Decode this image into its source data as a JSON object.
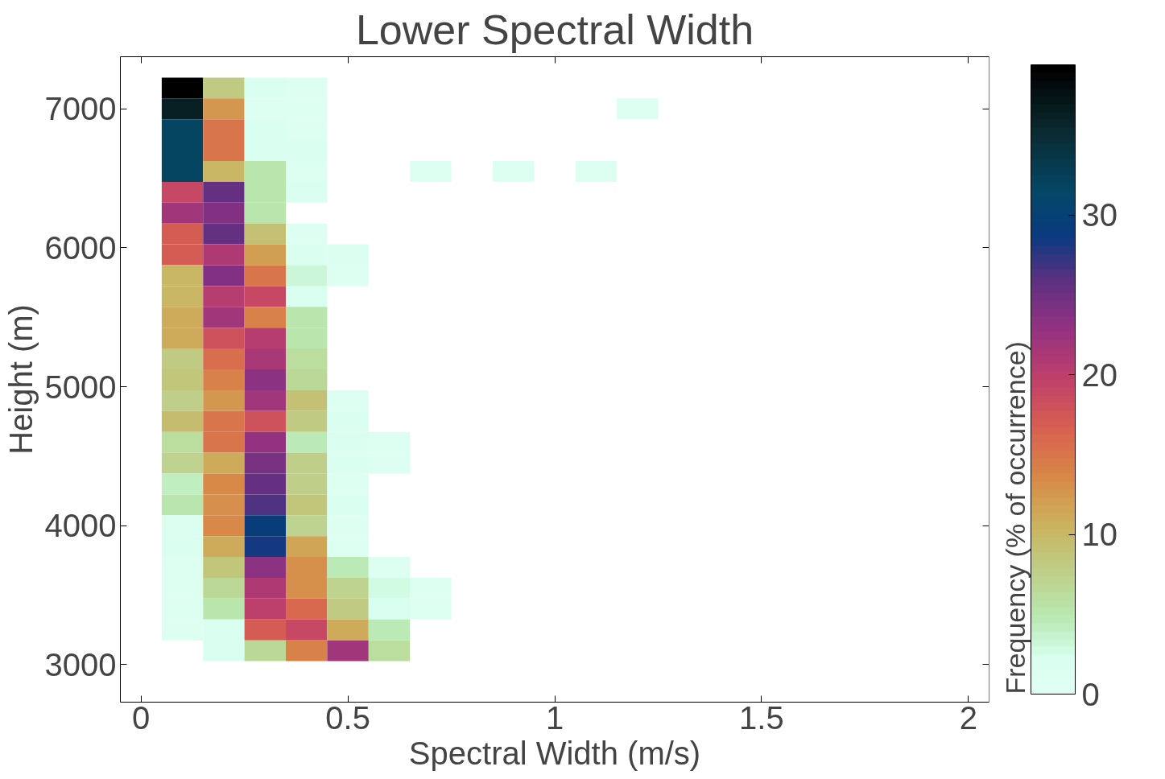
{
  "chart_data": {
    "type": "heatmap",
    "title": "Lower Spectral Width",
    "xlabel": "Spectral Width (m/s)",
    "ylabel": "Height (m)",
    "clabel": "Frequency (% of occurrence)",
    "x": [
      0.1,
      0.2,
      0.3,
      0.4,
      0.5,
      0.6,
      0.7,
      0.8,
      0.9,
      1.0,
      1.1,
      1.2
    ],
    "y": [
      7150,
      7000,
      6850,
      6700,
      6550,
      6400,
      6250,
      6100,
      5950,
      5800,
      5650,
      5500,
      5350,
      5200,
      5050,
      4900,
      4750,
      4600,
      4450,
      4300,
      4150,
      4000,
      3850,
      3700,
      3550,
      3400,
      3250,
      3100
    ],
    "cells": [
      [
        39,
        8,
        2,
        1,
        null,
        null,
        null,
        null,
        null,
        null,
        null,
        null
      ],
      [
        36,
        12.5,
        1,
        1,
        null,
        null,
        null,
        null,
        null,
        null,
        null,
        1
      ],
      [
        32,
        15,
        2,
        1,
        null,
        null,
        null,
        null,
        null,
        null,
        null,
        null
      ],
      [
        32,
        15,
        2,
        2,
        null,
        null,
        null,
        null,
        null,
        null,
        null,
        null
      ],
      [
        32,
        10,
        5,
        1,
        null,
        null,
        1,
        null,
        1,
        null,
        1,
        null
      ],
      [
        19,
        25.5,
        5,
        1.5,
        null,
        null,
        null,
        null,
        null,
        null,
        null,
        null
      ],
      [
        22,
        24,
        5,
        null,
        null,
        null,
        null,
        null,
        null,
        null,
        null,
        null
      ],
      [
        17,
        25.5,
        9,
        1,
        null,
        null,
        null,
        null,
        null,
        null,
        null,
        null
      ],
      [
        17,
        21,
        12,
        1.5,
        1.5,
        null,
        null,
        null,
        null,
        null,
        null,
        null
      ],
      [
        10,
        24,
        15,
        3,
        1,
        null,
        null,
        null,
        null,
        null,
        null,
        null
      ],
      [
        10,
        20.5,
        19,
        2,
        null,
        null,
        null,
        null,
        null,
        null,
        null,
        null
      ],
      [
        11,
        22,
        14,
        5,
        null,
        null,
        null,
        null,
        null,
        null,
        null,
        null
      ],
      [
        11,
        18,
        20.5,
        5,
        null,
        null,
        null,
        null,
        null,
        null,
        null,
        null
      ],
      [
        8,
        15.5,
        21.5,
        6,
        null,
        null,
        null,
        null,
        null,
        null,
        null,
        null
      ],
      [
        8.5,
        14,
        23.5,
        6.5,
        null,
        null,
        null,
        null,
        null,
        null,
        null,
        null
      ],
      [
        7.5,
        12.5,
        22,
        9,
        1,
        null,
        null,
        null,
        null,
        null,
        null,
        null
      ],
      [
        9.5,
        15,
        18,
        8,
        1.5,
        null,
        null,
        null,
        null,
        null,
        null,
        null
      ],
      [
        6,
        15,
        23,
        4.5,
        1.5,
        1,
        null,
        null,
        null,
        null,
        null,
        null
      ],
      [
        7,
        11,
        24.5,
        7.5,
        1.5,
        1,
        null,
        null,
        null,
        null,
        null,
        null
      ],
      [
        4,
        13.5,
        25.5,
        7.5,
        1,
        null,
        null,
        null,
        null,
        null,
        null,
        null
      ],
      [
        5,
        13,
        26.5,
        8.5,
        1.5,
        null,
        null,
        null,
        null,
        null,
        null,
        null
      ],
      [
        1.5,
        13.5,
        29.5,
        7,
        1,
        null,
        null,
        null,
        null,
        null,
        null,
        null
      ],
      [
        2,
        11,
        28.5,
        11.5,
        1,
        null,
        null,
        null,
        null,
        null,
        null,
        null
      ],
      [
        1,
        8.5,
        23.5,
        13,
        4.5,
        1,
        null,
        null,
        null,
        null,
        null,
        null
      ],
      [
        1,
        6.5,
        21,
        13,
        7,
        2.5,
        1,
        null,
        null,
        null,
        null,
        null
      ],
      [
        1,
        5,
        20,
        16,
        8,
        2,
        1,
        null,
        null,
        null,
        null,
        null
      ],
      [
        1,
        2,
        17,
        19,
        11,
        4.5,
        null,
        null,
        null,
        null,
        null,
        null
      ],
      [
        null,
        2,
        6.5,
        14,
        22,
        6,
        null,
        null,
        null,
        null,
        null,
        null
      ]
    ],
    "xlim": [
      -0.05,
      2.05
    ],
    "xticks": [
      0,
      0.5,
      1,
      1.5,
      2
    ],
    "ylim": [
      2730,
      7375
    ],
    "yticks": [
      3000,
      4000,
      5000,
      6000,
      7000
    ],
    "clim": [
      0,
      39.4
    ],
    "cticks": [
      0,
      10,
      20,
      30
    ],
    "grid": false
  }
}
